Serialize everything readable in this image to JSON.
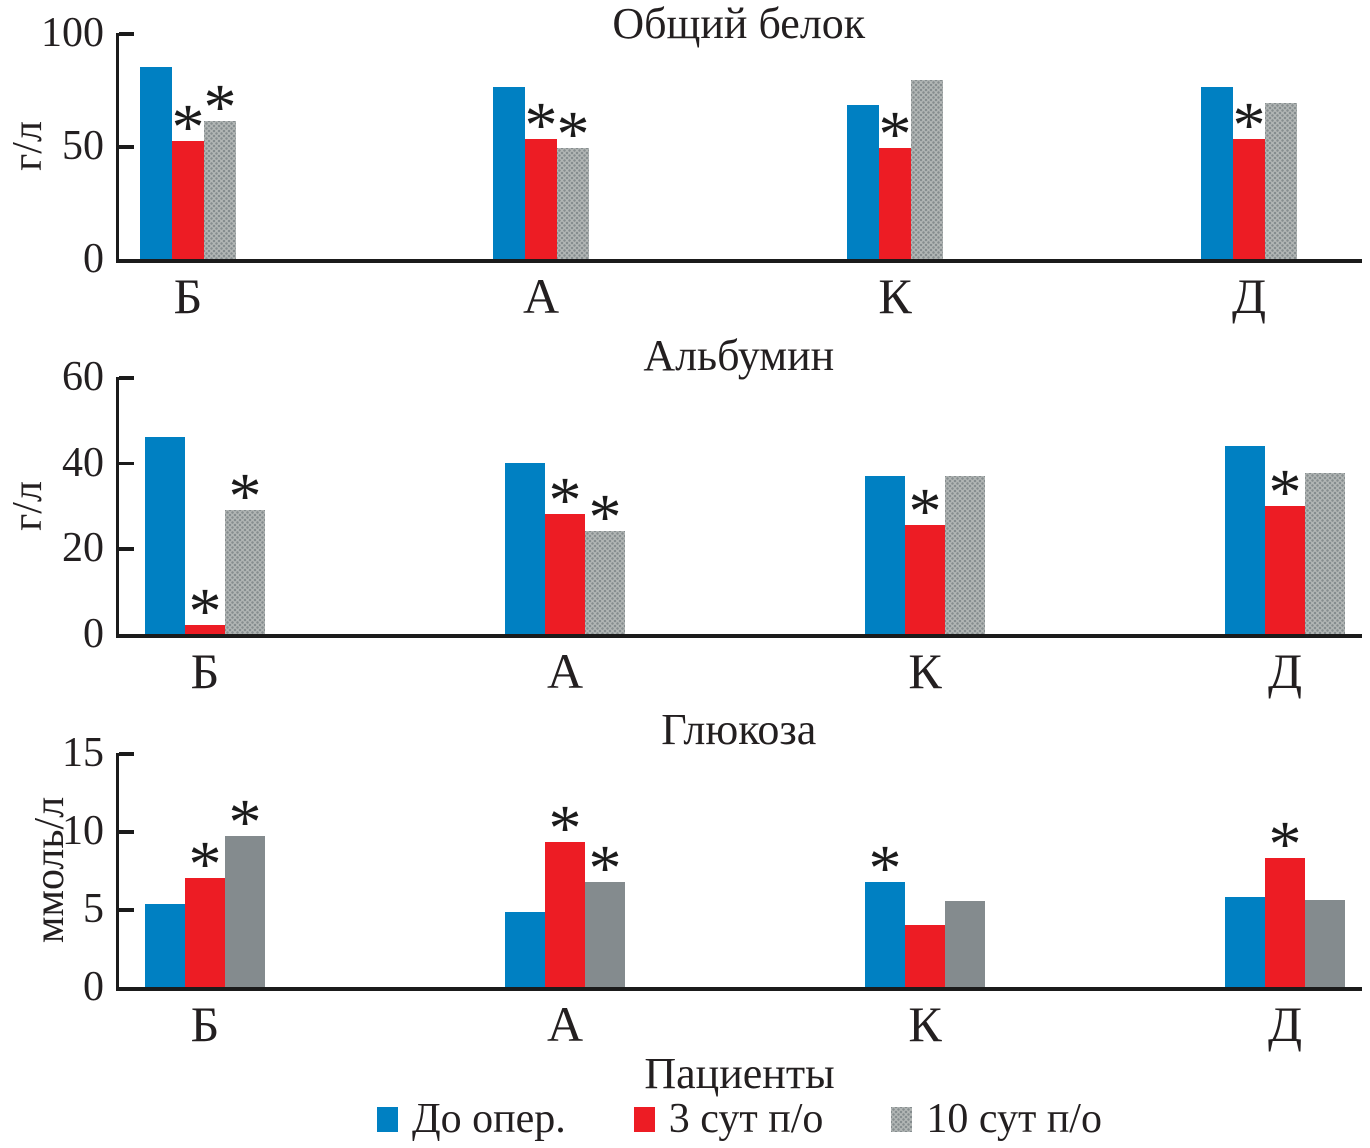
{
  "figure": {
    "x_axis_title": "Пациенты",
    "significance_marker": "*",
    "legend": [
      {
        "label": "До опер.",
        "color": "#0080C2",
        "texture": "solid"
      },
      {
        "label": "3 сут п/о",
        "color": "#ED1C24",
        "texture": "solid"
      },
      {
        "label": "10 сут п/о",
        "color": "#b2b6b5",
        "texture": "stippled"
      }
    ]
  },
  "chart_data": [
    {
      "type": "bar",
      "title": "Общий белок",
      "ylabel": "г/л",
      "ylim": [
        0,
        100
      ],
      "yticks": [
        0,
        50,
        100
      ],
      "categories": [
        "Б",
        "А",
        "К",
        "Д"
      ],
      "series": [
        {
          "name": "До опер.",
          "color": "#0080C2",
          "texture": "solid",
          "values": [
            85,
            76,
            68,
            76
          ],
          "asterisks": [
            0,
            0,
            0,
            0
          ]
        },
        {
          "name": "3 сут п/о",
          "color": "#ED1C24",
          "texture": "solid",
          "values": [
            52,
            53,
            49,
            53
          ],
          "asterisks": [
            1,
            1,
            1,
            1
          ]
        },
        {
          "name": "10 сут п/о",
          "color": "#b2b6b5",
          "texture": "stippled",
          "values": [
            61,
            49,
            79,
            69
          ],
          "asterisks": [
            1,
            1,
            0,
            0
          ]
        }
      ]
    },
    {
      "type": "bar",
      "title": "Альбумин",
      "ylabel": "г/л",
      "ylim": [
        0,
        60
      ],
      "yticks": [
        0,
        20,
        40,
        60
      ],
      "categories": [
        "Б",
        "А",
        "К",
        "Д"
      ],
      "series": [
        {
          "name": "До опер.",
          "color": "#0080C2",
          "texture": "solid",
          "values": [
            46,
            40,
            37,
            44
          ],
          "asterisks": [
            0,
            0,
            0,
            0
          ]
        },
        {
          "name": "3 сут п/о",
          "color": "#ED1C24",
          "texture": "solid",
          "values": [
            2,
            28,
            25.5,
            30
          ],
          "asterisks": [
            1,
            1,
            1,
            1
          ]
        },
        {
          "name": "10 сут п/о",
          "color": "#b2b6b5",
          "texture": "stippled",
          "values": [
            29,
            24,
            37,
            37.5
          ],
          "asterisks": [
            1,
            1,
            0,
            0
          ]
        }
      ]
    },
    {
      "type": "bar",
      "title": "Глюкоза",
      "ylabel": "ммоль/л",
      "ylim": [
        0,
        15
      ],
      "yticks": [
        0,
        5,
        10,
        15
      ],
      "categories": [
        "Б",
        "А",
        "К",
        "Д"
      ],
      "series": [
        {
          "name": "До опер.",
          "color": "#0080C2",
          "texture": "solid",
          "values": [
            5.3,
            4.8,
            6.7,
            5.8
          ],
          "asterisks": [
            0,
            0,
            1,
            0
          ]
        },
        {
          "name": "3 сут п/о",
          "color": "#ED1C24",
          "texture": "solid",
          "values": [
            7.0,
            9.3,
            4.0,
            8.3
          ],
          "asterisks": [
            1,
            1,
            0,
            1
          ]
        },
        {
          "name": "10 сут п/о",
          "color": "#848b8e",
          "texture": "solid",
          "values": [
            9.7,
            6.7,
            5.5,
            5.6
          ],
          "asterisks": [
            1,
            1,
            0,
            0
          ]
        }
      ]
    }
  ]
}
